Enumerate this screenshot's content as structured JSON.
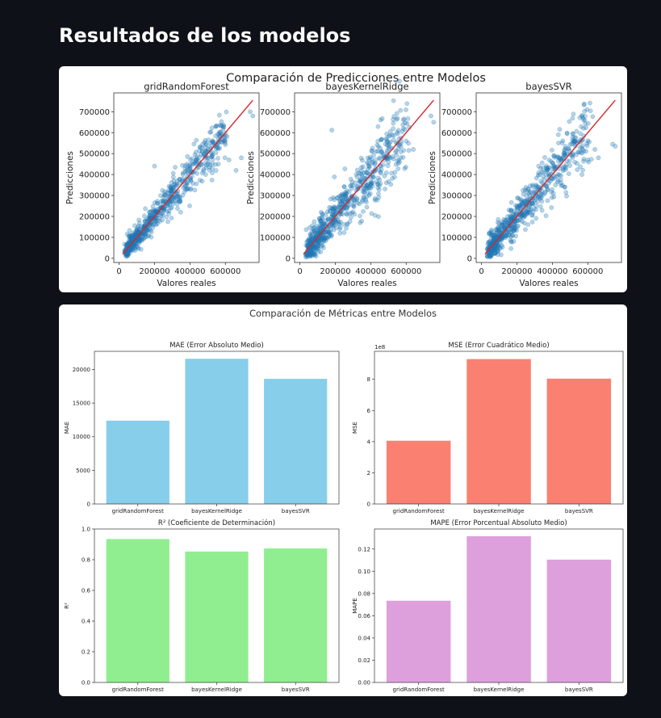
{
  "page": {
    "title": "Resultados de los modelos"
  },
  "colors": {
    "scatter_point": "#1f77b4",
    "ideal_line": "#d62728",
    "mae_bar": "#87ceeb",
    "mse_bar": "#fa8072",
    "r2_bar": "#90ee90",
    "mape_bar": "#dda0dd"
  },
  "predictions_figure": {
    "suptitle": "Comparación de Predicciones entre Modelos",
    "xlabel": "Valores reales",
    "ylabel": "Predicciones",
    "x_ticks": [
      "0",
      "200000",
      "400000",
      "600000"
    ],
    "y_ticks": [
      "0",
      "100000",
      "200000",
      "300000",
      "400000",
      "500000",
      "600000",
      "700000"
    ]
  },
  "metrics_figure": {
    "suptitle": "Comparación de Métricas entre Modelos"
  },
  "chart_data": [
    {
      "type": "scatter",
      "title": "gridRandomForest",
      "xlabel": "Valores reales",
      "ylabel": "Predicciones",
      "xlim": [
        -30000,
        790000
      ],
      "ylim": [
        -20000,
        790000
      ],
      "reference_line": {
        "from": [
          20000,
          20000
        ],
        "to": [
          755000,
          755000
        ]
      },
      "spread": 32000,
      "outliers": [
        [
          200000,
          440000
        ],
        [
          440000,
          430000
        ],
        [
          560000,
          450000
        ],
        [
          620000,
          470000
        ],
        [
          660000,
          420000
        ],
        [
          740000,
          700000
        ],
        [
          755000,
          680000
        ],
        [
          690000,
          480000
        ]
      ]
    },
    {
      "type": "scatter",
      "title": "bayesKernelRidge",
      "xlabel": "Valores reales",
      "ylabel": "Predicciones",
      "xlim": [
        -30000,
        790000
      ],
      "ylim": [
        -20000,
        790000
      ],
      "reference_line": {
        "from": [
          20000,
          20000
        ],
        "to": [
          755000,
          755000
        ]
      },
      "spread": 48000,
      "outliers": [
        [
          180000,
          612000
        ],
        [
          600000,
          560000
        ],
        [
          640000,
          520000
        ],
        [
          740000,
          680000
        ],
        [
          755000,
          650000
        ],
        [
          500000,
          460000
        ],
        [
          120000,
          220000
        ]
      ]
    },
    {
      "type": "scatter",
      "title": "bayesSVR",
      "xlabel": "Valores reales",
      "ylabel": "Predicciones",
      "xlim": [
        -30000,
        790000
      ],
      "ylim": [
        -20000,
        790000
      ],
      "reference_line": {
        "from": [
          20000,
          20000
        ],
        "to": [
          755000,
          755000
        ]
      },
      "spread": 42000,
      "outliers": [
        [
          640000,
          520000
        ],
        [
          660000,
          480000
        ],
        [
          740000,
          545000
        ],
        [
          755000,
          535000
        ],
        [
          600000,
          470000
        ],
        [
          350000,
          410000
        ]
      ]
    },
    {
      "type": "bar",
      "title": "MAE (Error Absoluto Medio)",
      "ylabel": "MAE",
      "categories": [
        "gridRandomForest",
        "bayesKernelRidge",
        "bayesSVR"
      ],
      "values": [
        12400,
        21600,
        18600
      ],
      "ylim": [
        0,
        22700
      ],
      "y_ticks": [
        0,
        5000,
        10000,
        15000,
        20000
      ],
      "y_tick_labels": [
        "0",
        "5000",
        "10000",
        "15000",
        "20000"
      ],
      "offset_label": "",
      "color": "#87ceeb"
    },
    {
      "type": "bar",
      "title": "MSE (Error Cuadrático Medio)",
      "ylabel": "MSE",
      "categories": [
        "gridRandomForest",
        "bayesKernelRidge",
        "bayesSVR"
      ],
      "values": [
        406000000,
        930000000,
        805000000
      ],
      "ylim": [
        0,
        980000000
      ],
      "y_ticks": [
        0,
        200000000,
        400000000,
        600000000,
        800000000
      ],
      "y_tick_labels": [
        "0",
        "2",
        "4",
        "6",
        "8"
      ],
      "offset_label": "1e8",
      "color": "#fa8072"
    },
    {
      "type": "bar",
      "title": "R² (Coeficiente de Determinación)",
      "ylabel": "R²",
      "categories": [
        "gridRandomForest",
        "bayesKernelRidge",
        "bayesSVR"
      ],
      "values": [
        0.935,
        0.853,
        0.873
      ],
      "ylim": [
        0,
        1.0
      ],
      "y_ticks": [
        0,
        0.2,
        0.4,
        0.6,
        0.8,
        1.0
      ],
      "y_tick_labels": [
        "0.0",
        "0.2",
        "0.4",
        "0.6",
        "0.8",
        "1.0"
      ],
      "offset_label": "",
      "color": "#90ee90"
    },
    {
      "type": "bar",
      "title": "MAPE (Error Porcentual Absoluto Medio)",
      "ylabel": "MAPE",
      "categories": [
        "gridRandomForest",
        "bayesKernelRidge",
        "bayesSVR"
      ],
      "values": [
        0.0735,
        0.1315,
        0.1105
      ],
      "ylim": [
        0,
        0.138
      ],
      "y_ticks": [
        0,
        0.02,
        0.04,
        0.06,
        0.08,
        0.1,
        0.12
      ],
      "y_tick_labels": [
        "0.00",
        "0.02",
        "0.04",
        "0.06",
        "0.08",
        "0.10",
        "0.12"
      ],
      "offset_label": "",
      "color": "#dda0dd"
    }
  ]
}
